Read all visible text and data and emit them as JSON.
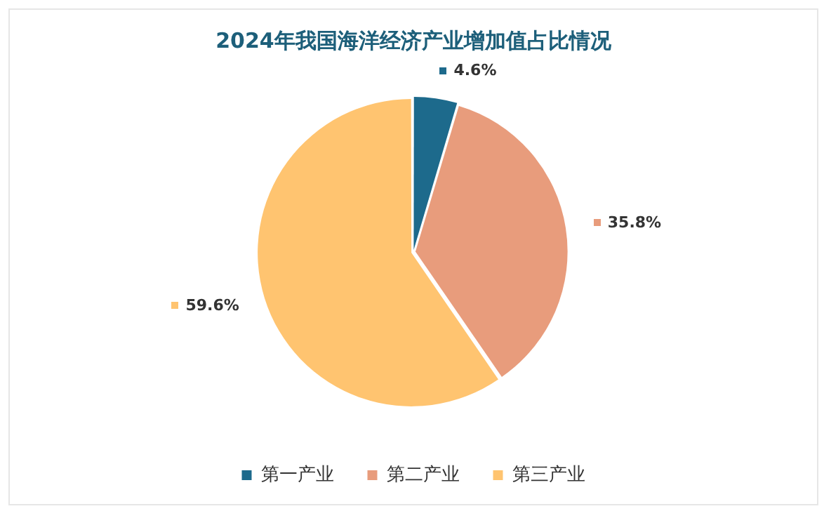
{
  "chart_data": {
    "type": "pie",
    "title": "2024年我国海洋经济产业增加值占比情况",
    "categories": [
      "第一产业",
      "第二产业",
      "第三产业"
    ],
    "values": [
      4.6,
      35.8,
      59.6
    ],
    "colors": [
      "#1d6a8c",
      "#e89c7c",
      "#ffc470"
    ],
    "value_labels": [
      "4.6%",
      "35.8%",
      "59.6%"
    ],
    "legend": "bottom"
  }
}
